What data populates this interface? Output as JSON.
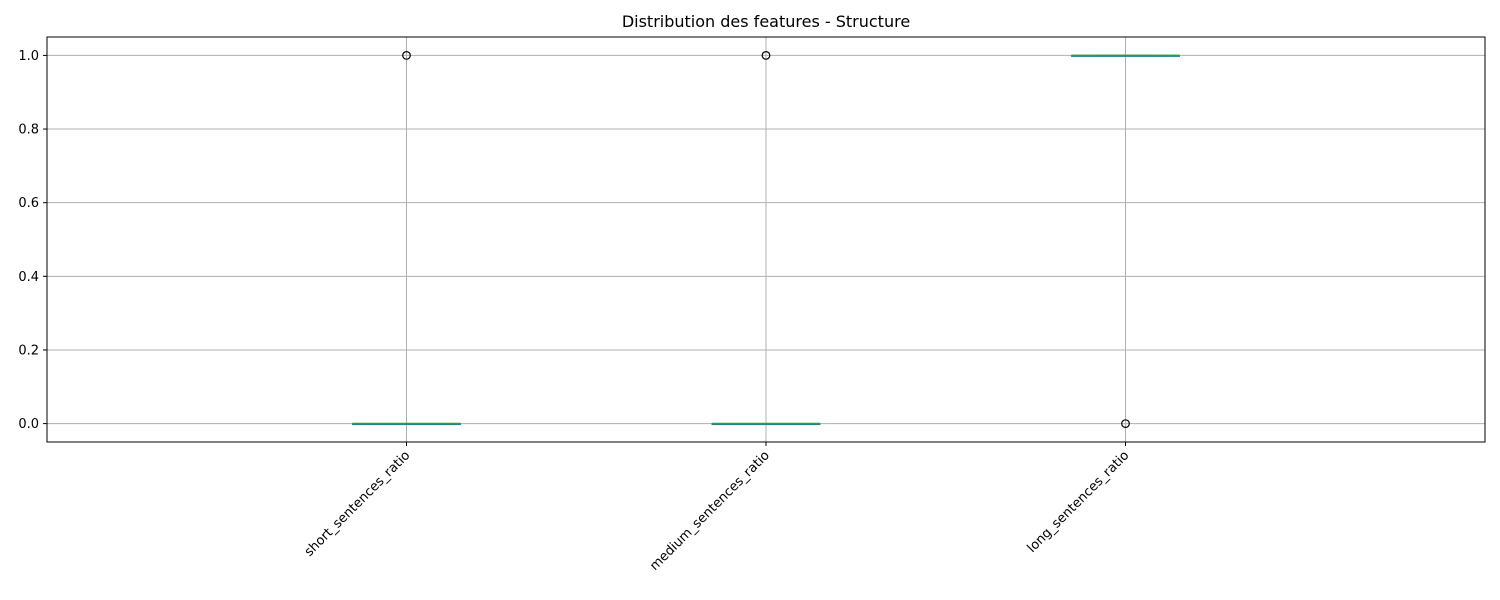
{
  "chart_data": {
    "type": "boxplot",
    "title": "Distribution des features - Structure",
    "xlabel": "",
    "ylabel": "",
    "ylim": [
      -0.05,
      1.05
    ],
    "yticks": [
      0.0,
      0.2,
      0.4,
      0.6,
      0.8,
      1.0
    ],
    "ytick_labels": [
      "0.0",
      "0.2",
      "0.4",
      "0.6",
      "0.8",
      "1.0"
    ],
    "grid": true,
    "xtick_rotation_deg": 45,
    "categories": [
      "short_sentences_ratio",
      "medium_sentences_ratio",
      "long_sentences_ratio"
    ],
    "boxes": [
      {
        "category": "short_sentences_ratio",
        "min": 0.0,
        "q1": 0.0,
        "median": 0.0,
        "q3": 0.0,
        "max": 0.0,
        "outliers": [
          1.0
        ]
      },
      {
        "category": "medium_sentences_ratio",
        "min": 0.0,
        "q1": 0.0,
        "median": 0.0,
        "q3": 0.0,
        "max": 0.0,
        "outliers": [
          1.0
        ]
      },
      {
        "category": "long_sentences_ratio",
        "min": 1.0,
        "q1": 1.0,
        "median": 1.0,
        "q3": 1.0,
        "max": 1.0,
        "outliers": [
          0.0
        ]
      }
    ],
    "colors": {
      "box": "#1f77b4",
      "median": "#2ca02c",
      "grid": "#b0b0b0",
      "outlier_edge": "#000000",
      "axis": "#000000"
    }
  }
}
